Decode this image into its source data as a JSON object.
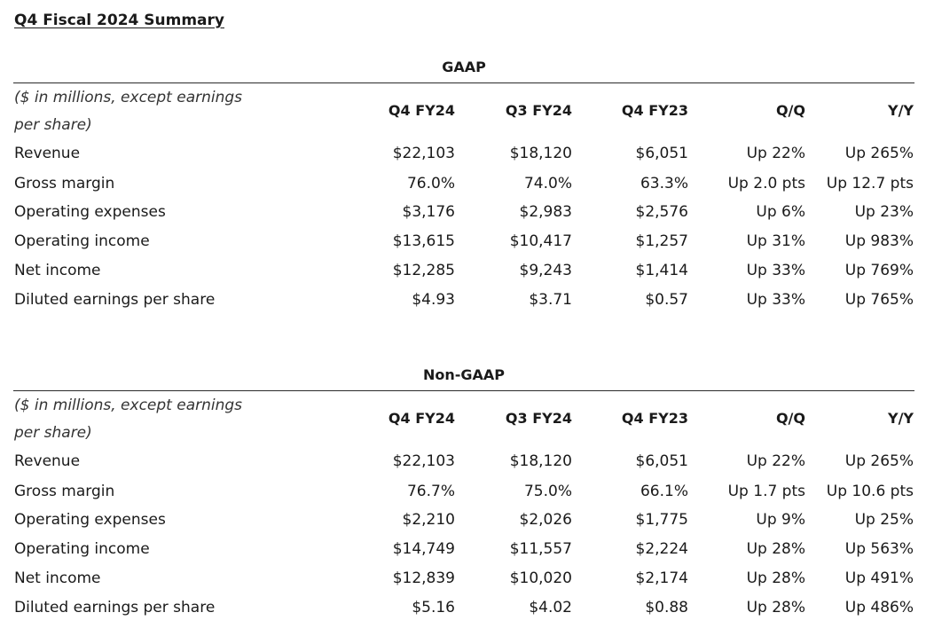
{
  "page_title": "Q4 Fiscal 2024 Summary",
  "sections": [
    {
      "title": "GAAP",
      "unit_label_line1": "($ in millions, except earnings",
      "unit_label_line2": "per share)",
      "columns": [
        "Q4 FY24",
        "Q3 FY24",
        "Q4 FY23",
        "Q/Q",
        "Y/Y"
      ],
      "rows": [
        {
          "label": "Revenue",
          "values": [
            "$22,103",
            "$18,120",
            "$6,051",
            "Up 22%",
            "Up 265%"
          ]
        },
        {
          "label": "Gross margin",
          "values": [
            "76.0%",
            "74.0%",
            "63.3%",
            "Up 2.0 pts",
            "Up 12.7 pts"
          ]
        },
        {
          "label": "Operating expenses",
          "values": [
            "$3,176",
            "$2,983",
            "$2,576",
            "Up 6%",
            "Up 23%"
          ]
        },
        {
          "label": "Operating income",
          "values": [
            "$13,615",
            "$10,417",
            "$1,257",
            "Up 31%",
            "Up 983%"
          ]
        },
        {
          "label": "Net income",
          "values": [
            "$12,285",
            "$9,243",
            "$1,414",
            "Up 33%",
            "Up 769%"
          ]
        },
        {
          "label": "Diluted earnings per share",
          "values": [
            "$4.93",
            "$3.71",
            "$0.57",
            "Up 33%",
            "Up 765%"
          ]
        }
      ]
    },
    {
      "title": "Non-GAAP",
      "unit_label_line1": "($ in millions, except earnings",
      "unit_label_line2": "per share)",
      "columns": [
        "Q4 FY24",
        "Q3 FY24",
        "Q4 FY23",
        "Q/Q",
        "Y/Y"
      ],
      "rows": [
        {
          "label": "Revenue",
          "values": [
            "$22,103",
            "$18,120",
            "$6,051",
            "Up 22%",
            "Up 265%"
          ]
        },
        {
          "label": "Gross margin",
          "values": [
            "76.7%",
            "75.0%",
            "66.1%",
            "Up 1.7 pts",
            "Up 10.6 pts"
          ]
        },
        {
          "label": "Operating expenses",
          "values": [
            "$2,210",
            "$2,026",
            "$1,775",
            "Up 9%",
            "Up 25%"
          ]
        },
        {
          "label": "Operating income",
          "values": [
            "$14,749",
            "$11,557",
            "$2,224",
            "Up 28%",
            "Up 563%"
          ]
        },
        {
          "label": "Net income",
          "values": [
            "$12,839",
            "$10,020",
            "$2,174",
            "Up 28%",
            "Up 491%"
          ]
        },
        {
          "label": "Diluted earnings per share",
          "values": [
            "$5.16",
            "$4.02",
            "$0.88",
            "Up 28%",
            "Up 486%"
          ]
        }
      ]
    }
  ]
}
